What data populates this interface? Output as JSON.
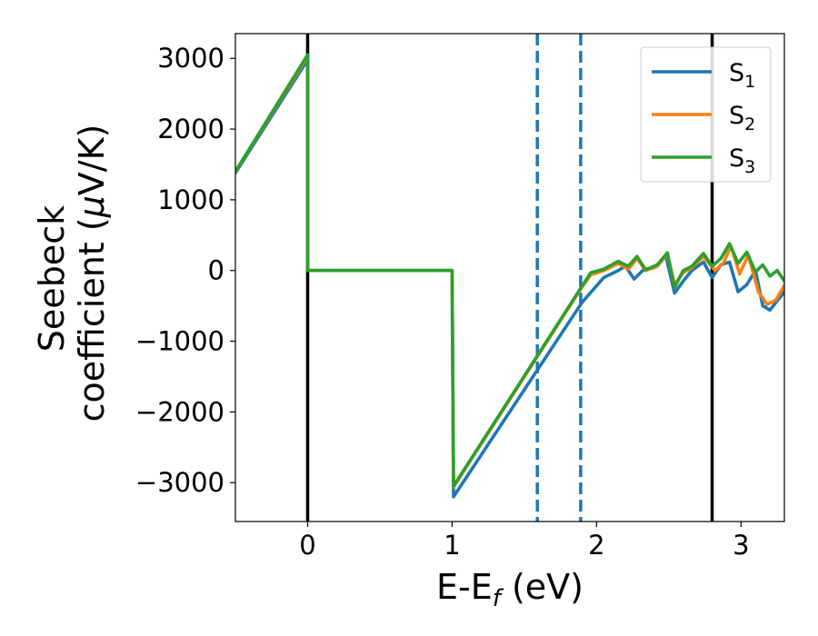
{
  "chart_data": {
    "type": "line",
    "xlabel": {
      "main": "E-E",
      "sub": "f",
      "unit": " (eV)"
    },
    "ylabel": {
      "line1": "Seebeck",
      "line2": "coefficient  (",
      "mu": "μ",
      "unit": "V/K)"
    },
    "xlim": [
      -0.5,
      3.3
    ],
    "ylim": [
      -3550,
      3350
    ],
    "xticks": [
      0,
      1,
      2,
      3
    ],
    "yticks": [
      -3000,
      -2000,
      -1000,
      0,
      1000,
      2000,
      3000
    ],
    "xtick_labels": [
      "0",
      "1",
      "2",
      "3"
    ],
    "ytick_labels": [
      "−3000",
      "−2000",
      "−1000",
      "0",
      "1000",
      "2000",
      "3000"
    ],
    "grid": false,
    "legend_position": "top-right",
    "vlines": [
      {
        "x": 0.0,
        "style": "solid",
        "color": "#000000"
      },
      {
        "x": 1.59,
        "style": "dashed",
        "color": "#1f77b4"
      },
      {
        "x": 1.89,
        "style": "dashed",
        "color": "#1f77b4"
      },
      {
        "x": 2.8,
        "style": "solid",
        "color": "#000000"
      }
    ],
    "series": [
      {
        "name": "S",
        "sub": "1",
        "color": "#1f77b4",
        "points": [
          [
            -0.5,
            1380
          ],
          [
            0.0,
            2980
          ],
          [
            0.0,
            0
          ],
          [
            1.0,
            0
          ],
          [
            1.01,
            -3200
          ],
          [
            1.9,
            -450
          ],
          [
            2.05,
            -100
          ],
          [
            2.15,
            0
          ],
          [
            2.2,
            60
          ],
          [
            2.26,
            -120
          ],
          [
            2.32,
            0
          ],
          [
            2.4,
            40
          ],
          [
            2.48,
            200
          ],
          [
            2.54,
            -320
          ],
          [
            2.6,
            -150
          ],
          [
            2.66,
            0
          ],
          [
            2.74,
            120
          ],
          [
            2.8,
            -100
          ],
          [
            2.86,
            80
          ],
          [
            2.92,
            120
          ],
          [
            2.98,
            -300
          ],
          [
            3.04,
            -200
          ],
          [
            3.1,
            0
          ],
          [
            3.15,
            -500
          ],
          [
            3.2,
            -560
          ],
          [
            3.3,
            -300
          ]
        ]
      },
      {
        "name": "S",
        "sub": "2",
        "color": "#ff7f0e",
        "points": [
          [
            -0.5,
            1400
          ],
          [
            0.0,
            3030
          ],
          [
            0.0,
            0
          ],
          [
            1.0,
            0
          ],
          [
            1.01,
            -3060
          ],
          [
            1.9,
            -230
          ],
          [
            1.96,
            -60
          ],
          [
            2.05,
            0
          ],
          [
            2.15,
            100
          ],
          [
            2.22,
            20
          ],
          [
            2.28,
            170
          ],
          [
            2.34,
            0
          ],
          [
            2.42,
            60
          ],
          [
            2.49,
            230
          ],
          [
            2.54,
            -200
          ],
          [
            2.6,
            -30
          ],
          [
            2.66,
            40
          ],
          [
            2.74,
            200
          ],
          [
            2.82,
            0
          ],
          [
            2.88,
            110
          ],
          [
            2.93,
            350
          ],
          [
            2.99,
            -50
          ],
          [
            3.05,
            220
          ],
          [
            3.12,
            -300
          ],
          [
            3.18,
            -480
          ],
          [
            3.24,
            -420
          ],
          [
            3.3,
            -210
          ]
        ]
      },
      {
        "name": "S",
        "sub": "3",
        "color": "#2ca02c",
        "points": [
          [
            -0.5,
            1400
          ],
          [
            0.0,
            3050
          ],
          [
            0.0,
            0
          ],
          [
            1.0,
            0
          ],
          [
            1.01,
            -3050
          ],
          [
            1.9,
            -220
          ],
          [
            1.96,
            -30
          ],
          [
            2.05,
            20
          ],
          [
            2.15,
            130
          ],
          [
            2.22,
            60
          ],
          [
            2.28,
            200
          ],
          [
            2.34,
            10
          ],
          [
            2.42,
            80
          ],
          [
            2.49,
            250
          ],
          [
            2.54,
            -240
          ],
          [
            2.6,
            0
          ],
          [
            2.66,
            60
          ],
          [
            2.74,
            240
          ],
          [
            2.8,
            60
          ],
          [
            2.86,
            170
          ],
          [
            2.92,
            380
          ],
          [
            2.98,
            100
          ],
          [
            3.04,
            260
          ],
          [
            3.1,
            -20
          ],
          [
            3.15,
            80
          ],
          [
            3.2,
            -80
          ],
          [
            3.25,
            0
          ],
          [
            3.3,
            -150
          ]
        ]
      }
    ]
  }
}
